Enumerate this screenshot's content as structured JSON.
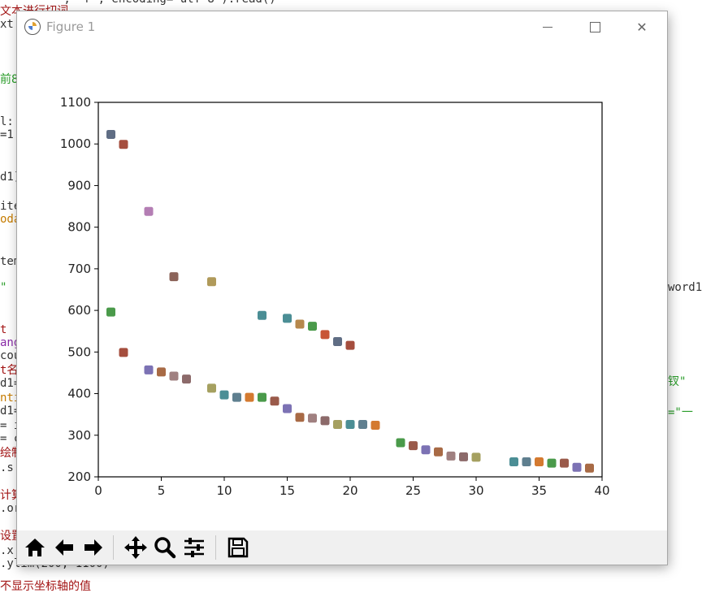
{
  "background_code": {
    "lines": [
      {
        "text": "文本进行切词",
        "color": "red"
      },
      {
        "text": "xt",
        "color": "dark"
      },
      {
        "text": "前8",
        "color": "green"
      },
      {
        "text": "l:",
        "color": "dark"
      },
      {
        "text": "=1:",
        "color": "dark"
      },
      {
        "text": "d1]",
        "color": "dark"
      },
      {
        "text": "ite",
        "color": "dark"
      },
      {
        "text": "oda",
        "color": "orange"
      },
      {
        "text": "tem",
        "color": "dark"
      },
      {
        "text": "\"",
        "color": "green"
      },
      {
        "text": "t",
        "color": "red"
      },
      {
        "text": "ang",
        "color": "purple"
      },
      {
        "text": "cou",
        "color": "dark"
      },
      {
        "text": "t名",
        "color": "red"
      },
      {
        "text": "d1=",
        "color": "dark"
      },
      {
        "text": "nti",
        "color": "orange"
      },
      {
        "text": "d1=",
        "color": "dark"
      },
      {
        "text": "= i",
        "color": "dark"
      },
      {
        "text": "= c",
        "color": "dark"
      },
      {
        "text": "绘制",
        "color": "red"
      },
      {
        "text": ".s",
        "color": "dark"
      },
      {
        "text": "计算",
        "color": "red"
      },
      {
        "text": ".or",
        "color": "dark"
      },
      {
        "text": "设置",
        "color": "red"
      },
      {
        "text": ".x",
        "color": "dark"
      },
      {
        "text": ".ylim(200, 1100)",
        "color": "dark"
      },
      {
        "text": "不显示坐标轴的值",
        "color": "red"
      }
    ],
    "top_fragment": "', 'r', encoding='utf-8').read()",
    "right_fragments": [
      {
        "text": "word1",
        "color": "dark"
      },
      {
        "text": "钗\"",
        "color": "green"
      },
      {
        "text": "=\"一",
        "color": "green"
      }
    ]
  },
  "window": {
    "title": "Figure 1",
    "icon": "matplotlib-icon",
    "controls": {
      "minimize": "minimize-icon",
      "maximize": "maximize-icon",
      "close": "close-icon",
      "close_glyph": "✕"
    }
  },
  "toolbar": {
    "buttons": [
      {
        "name": "home-icon"
      },
      {
        "name": "back-arrow-icon"
      },
      {
        "name": "forward-arrow-icon"
      },
      {
        "name": "pan-icon"
      },
      {
        "name": "zoom-icon"
      },
      {
        "name": "configure-subplots-icon"
      },
      {
        "name": "save-icon"
      }
    ]
  },
  "chart_data": {
    "type": "scatter",
    "title": "",
    "xlabel": "",
    "ylabel": "",
    "xlim": [
      0,
      40
    ],
    "ylim": [
      200,
      1100
    ],
    "xticks": [
      0,
      5,
      10,
      15,
      20,
      25,
      30,
      35,
      40
    ],
    "yticks": [
      200,
      300,
      400,
      500,
      600,
      700,
      800,
      900,
      1000,
      1100
    ],
    "grid": false,
    "marker": "square",
    "series": [
      {
        "color": "#5f6d84",
        "x": 1,
        "y": 1023
      },
      {
        "color": "#a54e3e",
        "x": 2,
        "y": 999
      },
      {
        "color": "#b47eb4",
        "x": 4,
        "y": 838
      },
      {
        "color": "#8c645a",
        "x": 6,
        "y": 681
      },
      {
        "color": "#b09a5a",
        "x": 9,
        "y": 669
      },
      {
        "color": "#4a9a4a",
        "x": 1,
        "y": 596
      },
      {
        "color": "#4b8e95",
        "x": 13,
        "y": 588
      },
      {
        "color": "#4b8e95",
        "x": 15,
        "y": 581
      },
      {
        "color": "#b6884c",
        "x": 16,
        "y": 567
      },
      {
        "color": "#4a9a4a",
        "x": 17,
        "y": 562
      },
      {
        "color": "#c85536",
        "x": 18,
        "y": 542
      },
      {
        "color": "#5f6d84",
        "x": 19,
        "y": 525
      },
      {
        "color": "#a54e3e",
        "x": 20,
        "y": 516
      },
      {
        "color": "#a54e3e",
        "x": 2,
        "y": 499
      },
      {
        "color": "#7c72b4",
        "x": 4,
        "y": 457
      },
      {
        "color": "#a86a45",
        "x": 5,
        "y": 452
      },
      {
        "color": "#a08080",
        "x": 6,
        "y": 442
      },
      {
        "color": "#8c6a6a",
        "x": 7,
        "y": 435
      },
      {
        "color": "#a5a060",
        "x": 9,
        "y": 413
      },
      {
        "color": "#4b8e95",
        "x": 10,
        "y": 397
      },
      {
        "color": "#5f7f8f",
        "x": 11,
        "y": 391
      },
      {
        "color": "#d47a30",
        "x": 12,
        "y": 391
      },
      {
        "color": "#4a9a4a",
        "x": 13,
        "y": 391
      },
      {
        "color": "#9a5a4a",
        "x": 14,
        "y": 382
      },
      {
        "color": "#7c72b4",
        "x": 15,
        "y": 364
      },
      {
        "color": "#a86a45",
        "x": 16,
        "y": 343
      },
      {
        "color": "#a08080",
        "x": 17,
        "y": 341
      },
      {
        "color": "#8c6a6a",
        "x": 18,
        "y": 335
      },
      {
        "color": "#a5a060",
        "x": 19,
        "y": 326
      },
      {
        "color": "#4b8e95",
        "x": 20,
        "y": 326
      },
      {
        "color": "#5f7f8f",
        "x": 21,
        "y": 326
      },
      {
        "color": "#d47a30",
        "x": 22,
        "y": 324
      },
      {
        "color": "#4a9a4a",
        "x": 24,
        "y": 282
      },
      {
        "color": "#9a5a4a",
        "x": 25,
        "y": 275
      },
      {
        "color": "#7c72b4",
        "x": 26,
        "y": 265
      },
      {
        "color": "#a86a45",
        "x": 27,
        "y": 260
      },
      {
        "color": "#a08080",
        "x": 28,
        "y": 250
      },
      {
        "color": "#8c6a6a",
        "x": 29,
        "y": 248
      },
      {
        "color": "#a5a060",
        "x": 30,
        "y": 247
      },
      {
        "color": "#4b8e95",
        "x": 33,
        "y": 236
      },
      {
        "color": "#5f7f8f",
        "x": 34,
        "y": 236
      },
      {
        "color": "#d47a30",
        "x": 35,
        "y": 236
      },
      {
        "color": "#4a9a4a",
        "x": 36,
        "y": 233
      },
      {
        "color": "#9a5a4a",
        "x": 37,
        "y": 233
      },
      {
        "color": "#7c72b4",
        "x": 38,
        "y": 223
      },
      {
        "color": "#a86a45",
        "x": 39,
        "y": 221
      }
    ]
  }
}
